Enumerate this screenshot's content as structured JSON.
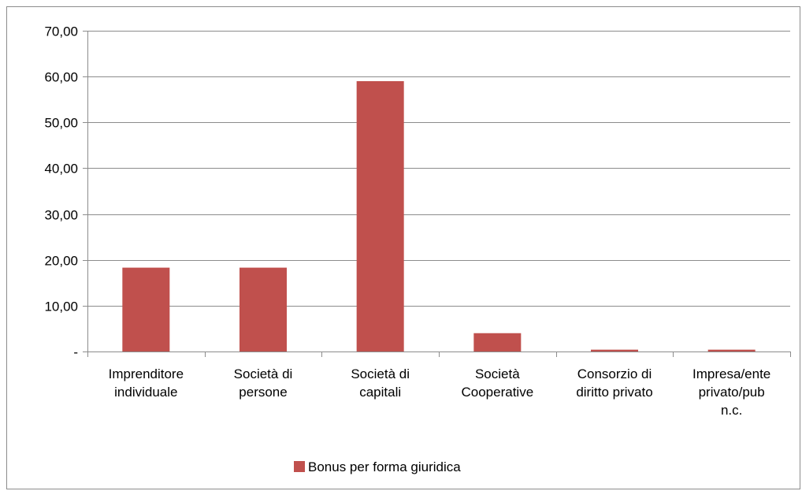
{
  "chart_data": {
    "type": "bar",
    "title": "",
    "xlabel": "",
    "ylabel": "",
    "categories": [
      [
        "Imprenditore",
        "individuale"
      ],
      [
        "Società di",
        "persone"
      ],
      [
        "Società di",
        "capitali"
      ],
      [
        "Società",
        "Cooperative"
      ],
      [
        "Consorzio di",
        "diritto privato"
      ],
      [
        "Impresa/ente",
        "privato/pub",
        "n.c."
      ]
    ],
    "series": [
      {
        "name": "Bonus per forma giuridica",
        "color": "#c0504d",
        "values": [
          18.3,
          18.3,
          59.0,
          4.0,
          0.4,
          0.4
        ]
      }
    ],
    "ylim": [
      0,
      70
    ],
    "yticks": [
      0,
      10,
      20,
      30,
      40,
      50,
      60,
      70
    ],
    "ytick_labels": [
      "-",
      "10,00",
      "20,00",
      "30,00",
      "40,00",
      "50,00",
      "60,00",
      "70,00"
    ],
    "grid": true,
    "legend_position": "bottom"
  }
}
